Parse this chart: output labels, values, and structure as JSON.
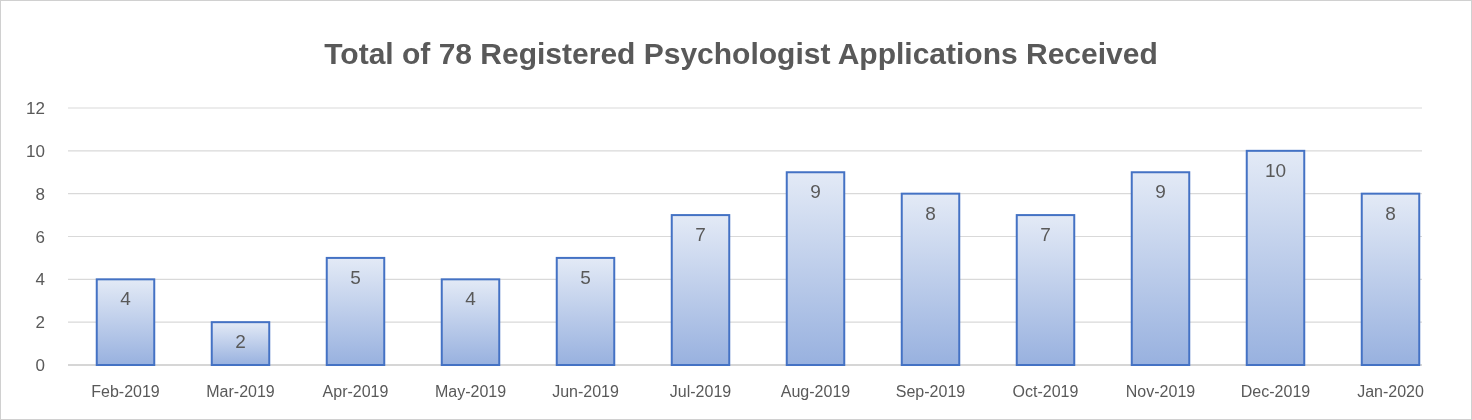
{
  "chart_data": {
    "type": "bar",
    "title": "Total of 78 Registered Psychologist Applications Received",
    "categories": [
      "Feb-2019",
      "Mar-2019",
      "Apr-2019",
      "May-2019",
      "Jun-2019",
      "Jul-2019",
      "Aug-2019",
      "Sep-2019",
      "Oct-2019",
      "Nov-2019",
      "Dec-2019",
      "Jan-2020"
    ],
    "values": [
      4,
      2,
      5,
      4,
      5,
      7,
      9,
      8,
      7,
      9,
      10,
      8
    ],
    "color": "#4472c4",
    "ylim": [
      0,
      12
    ],
    "yticks": [
      0,
      2,
      4,
      6,
      8,
      10,
      12
    ],
    "grid": "y",
    "data_labels": true
  }
}
